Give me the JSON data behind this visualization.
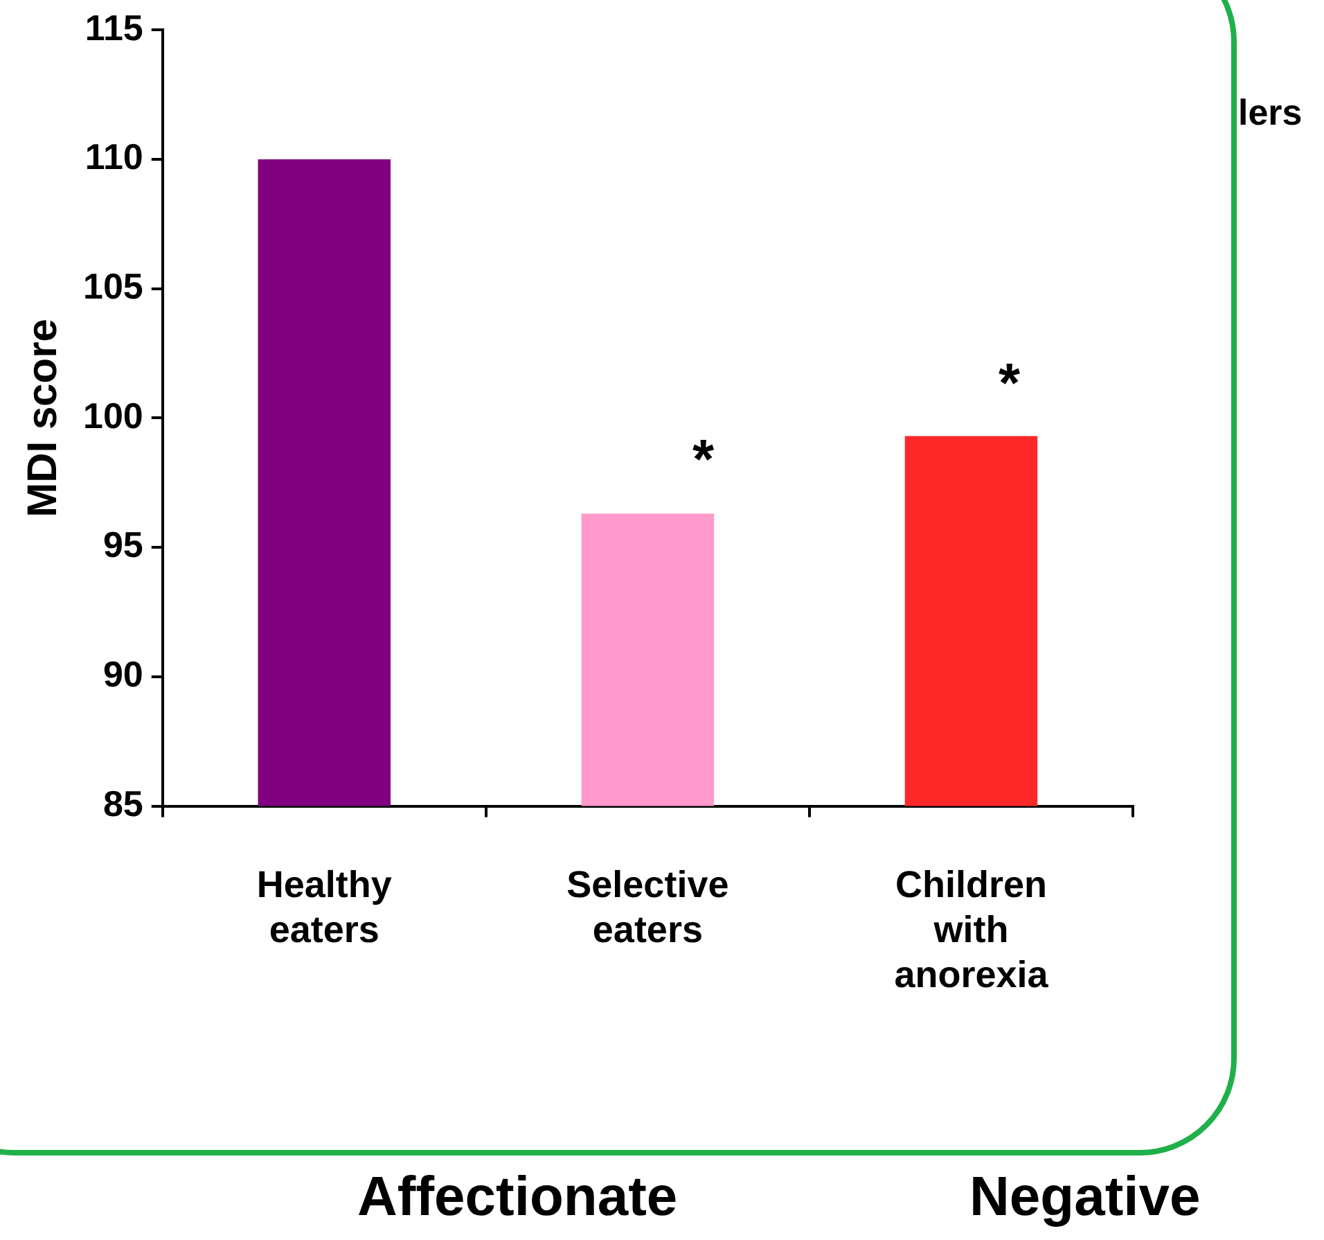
{
  "chart_data": {
    "type": "bar",
    "ylabel": "MDI score",
    "categories": [
      "Healthy eaters",
      "Selective eaters",
      "Children with anorexia"
    ],
    "values": [
      110,
      96.3,
      99.3
    ],
    "colors": [
      "#800080",
      "#ff99cc",
      "#ff2828"
    ],
    "ylim": [
      85,
      115
    ],
    "yticks": [
      85,
      90,
      95,
      100,
      105,
      110,
      115
    ],
    "grid": false,
    "legend": false,
    "annotations": [
      "*",
      "*",
      "lers",
      "Affectionate",
      "Negative"
    ]
  }
}
